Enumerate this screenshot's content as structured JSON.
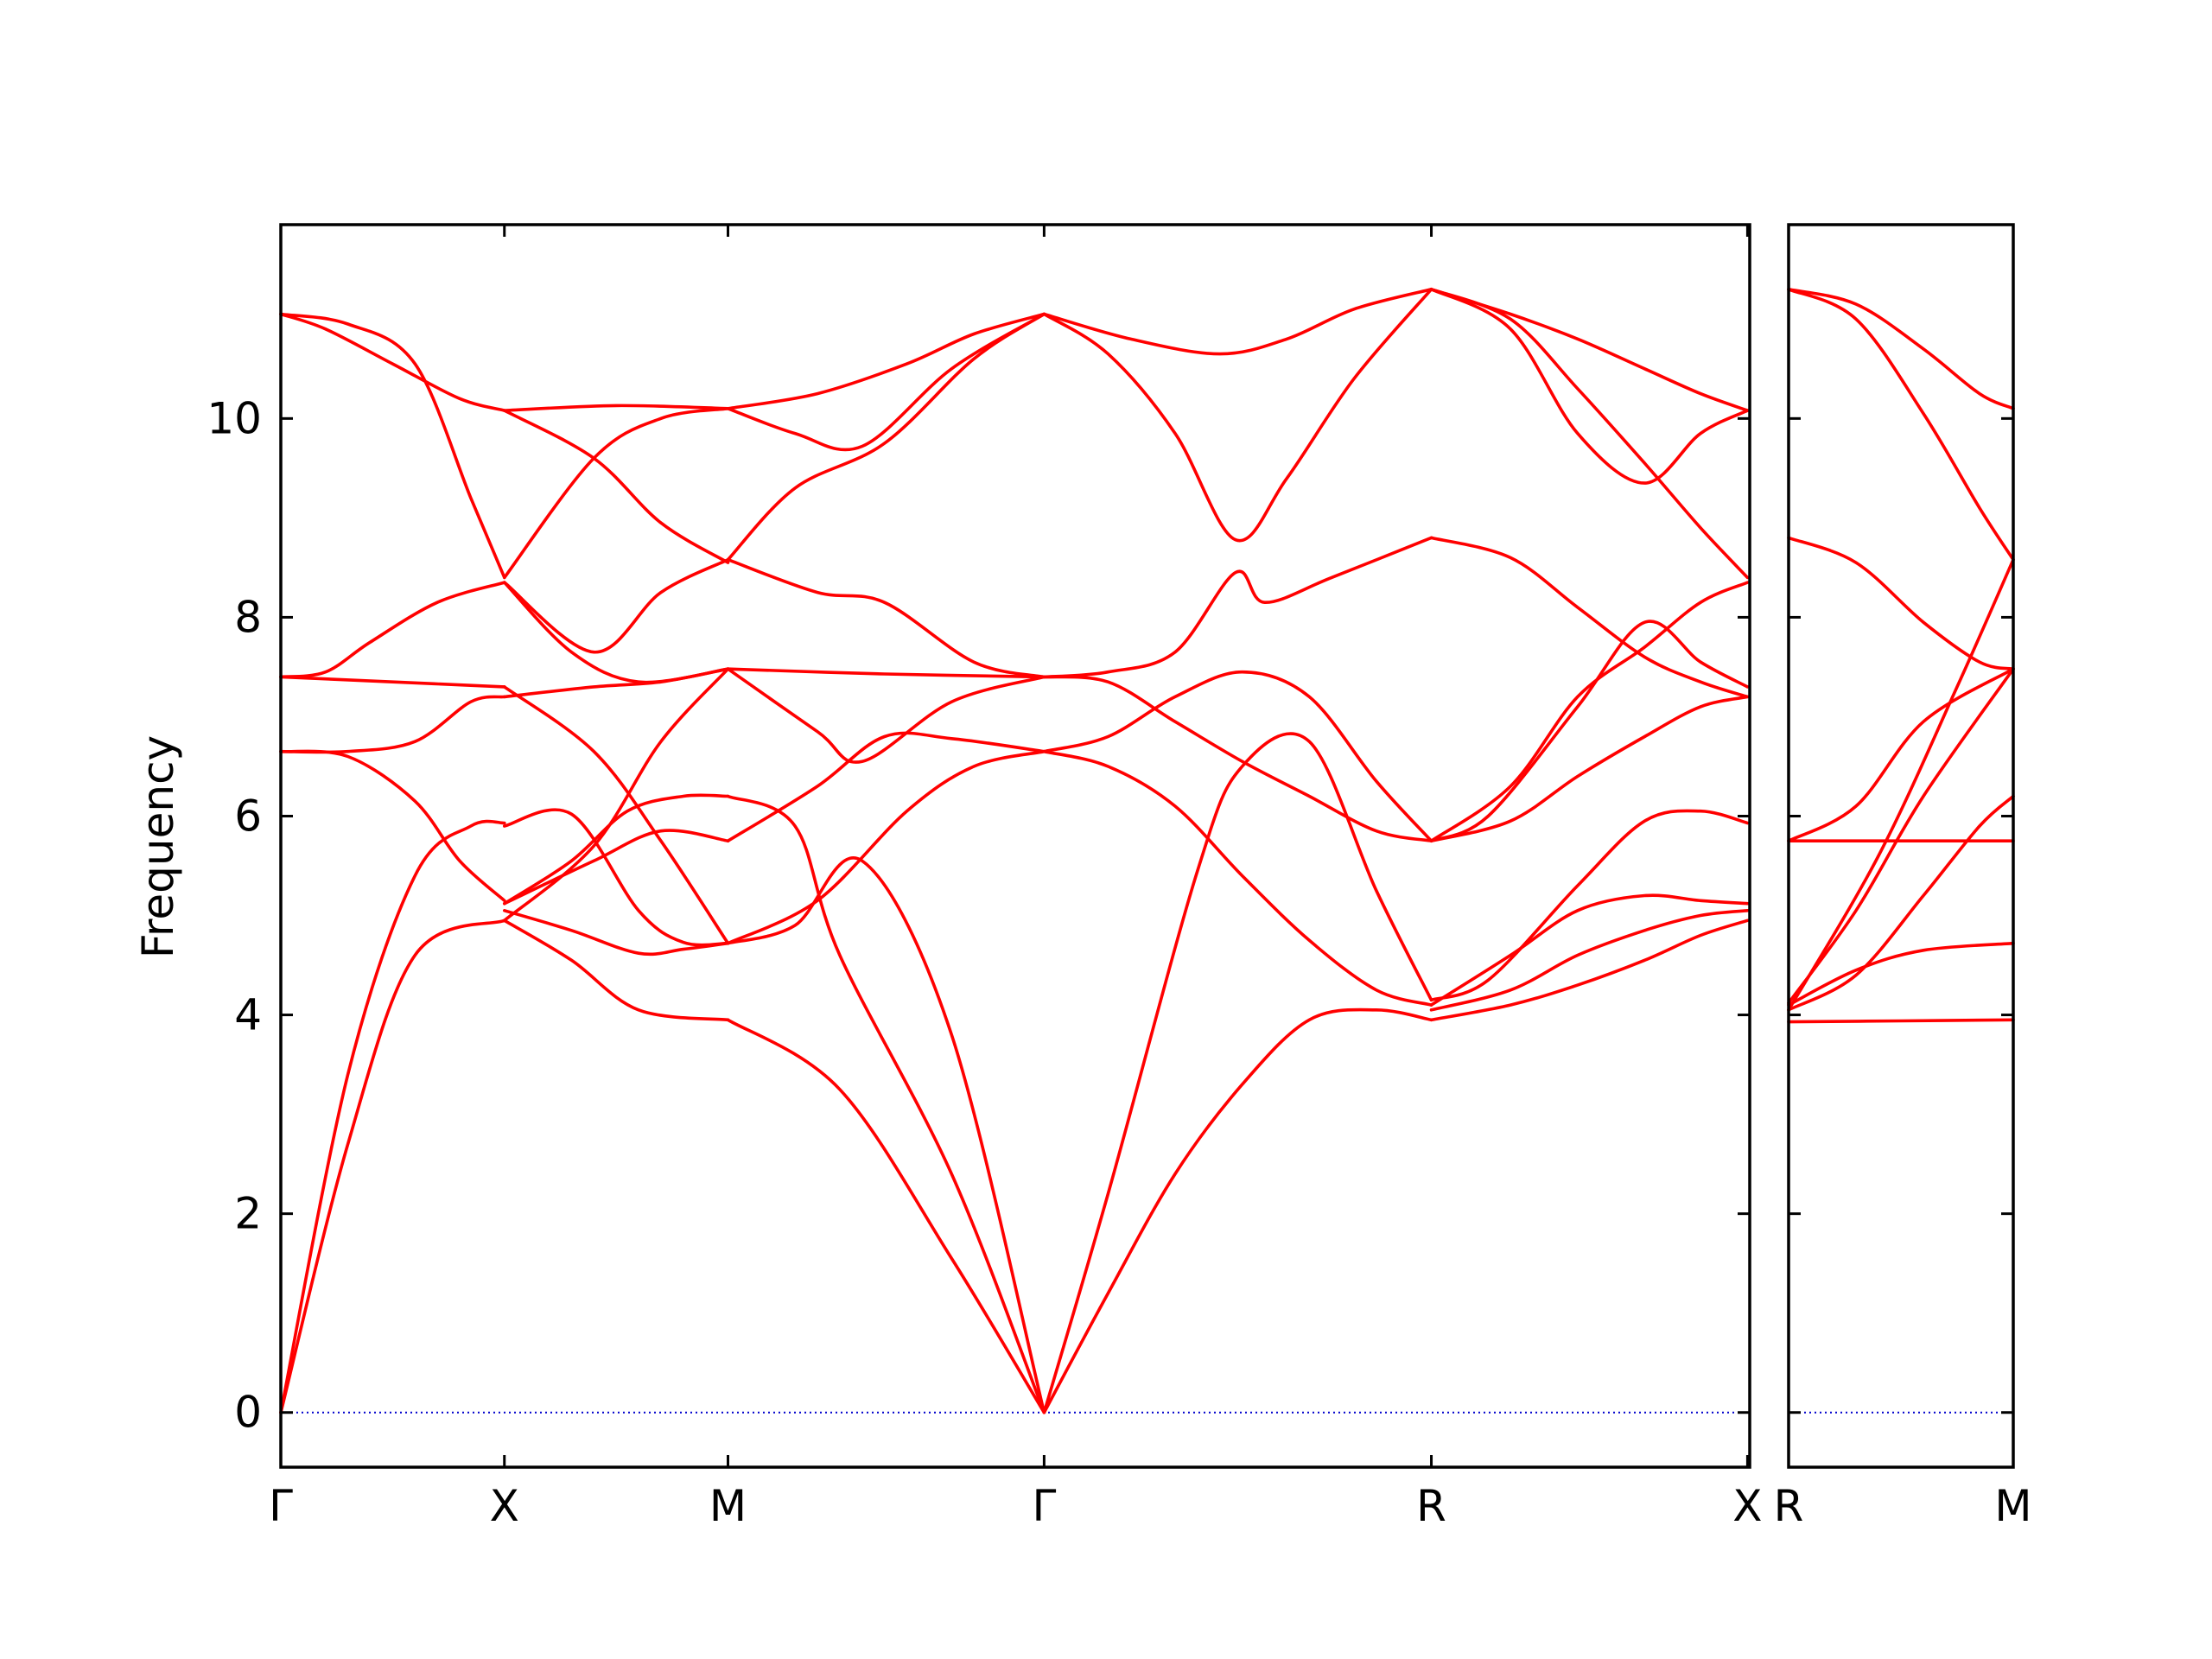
{
  "chart_data": {
    "type": "line",
    "ylabel": "Frequency",
    "ylim": [
      -0.55,
      11.95
    ],
    "yticks": [
      0,
      2,
      4,
      6,
      8,
      10
    ],
    "ytick_labels": [
      "0",
      "2",
      "4",
      "6",
      "8",
      "10"
    ],
    "line_color": "#ff0000",
    "zero_line_color": "#0000cc",
    "grid": false,
    "panels": [
      {
        "id": "main",
        "xlim": [
          0,
          6.57
        ],
        "xticks": [
          0,
          1,
          2,
          3.414,
          5.146,
          6.56
        ],
        "xtick_labels": [
          "Γ",
          "X",
          "M",
          "Γ",
          "R",
          "X"
        ],
        "bands": [
          {
            "x": [
              0,
              0.3,
              0.6,
              1
            ],
            "y": [
              0,
              2.7,
              4.6,
              4.95
            ]
          },
          {
            "x": [
              0,
              0.3,
              0.6,
              0.85,
              1
            ],
            "y": [
              0,
              3.4,
              5.4,
              5.9,
              5.93
            ]
          },
          {
            "x": [
              0,
              0.3,
              0.6,
              0.8,
              1
            ],
            "y": [
              6.65,
              6.6,
              6.15,
              5.55,
              5.15
            ]
          },
          {
            "x": [
              0,
              0.3,
              0.6,
              0.85,
              1
            ],
            "y": [
              6.65,
              6.65,
              6.75,
              7.15,
              7.2
            ]
          },
          {
            "x": [
              0,
              0.5,
              1
            ],
            "y": [
              7.4,
              7.35,
              7.3
            ]
          },
          {
            "x": [
              0,
              0.2,
              0.4,
              0.7,
              1
            ],
            "y": [
              7.4,
              7.45,
              7.75,
              8.15,
              8.35
            ]
          },
          {
            "x": [
              0,
              0.3,
              0.6,
              0.85,
              1
            ],
            "y": [
              11.05,
              10.95,
              10.55,
              9.2,
              8.4
            ]
          },
          {
            "x": [
              0,
              0.2,
              0.5,
              0.8,
              1
            ],
            "y": [
              11.05,
              10.9,
              10.55,
              10.2,
              10.08
            ]
          },
          {
            "x": [
              1,
              1.3,
              1.6,
              2
            ],
            "y": [
              4.95,
              4.55,
              4.05,
              3.95
            ]
          },
          {
            "x": [
              1,
              1.3,
              1.6,
              1.8,
              2
            ],
            "y": [
              5.05,
              4.85,
              4.62,
              4.66,
              4.72
            ]
          },
          {
            "x": [
              1,
              1.3,
              1.55,
              1.8,
              2
            ],
            "y": [
              5.12,
              5.55,
              6.05,
              6.2,
              6.2
            ]
          },
          {
            "x": [
              1,
              1.3,
              1.6,
              1.8,
              2
            ],
            "y": [
              5.9,
              6.02,
              5.05,
              4.73,
              4.72
            ]
          },
          {
            "x": [
              1,
              1.4,
              1.7,
              2
            ],
            "y": [
              5.12,
              5.55,
              5.85,
              5.75
            ]
          },
          {
            "x": [
              1,
              1.4,
              1.7,
              2
            ],
            "y": [
              7.2,
              7.3,
              7.35,
              7.48
            ]
          },
          {
            "x": [
              1,
              1.4,
              1.7,
              2
            ],
            "y": [
              7.3,
              6.65,
              5.75,
              4.72
            ]
          },
          {
            "x": [
              1,
              1.3,
              1.6,
              2
            ],
            "y": [
              8.35,
              7.65,
              7.35,
              7.48
            ]
          },
          {
            "x": [
              1,
              1.4,
              1.7,
              2
            ],
            "y": [
              4.95,
              5.7,
              6.75,
              7.48
            ]
          },
          {
            "x": [
              1,
              1.4,
              1.7,
              2
            ],
            "y": [
              8.35,
              7.65,
              8.25,
              8.58
            ]
          },
          {
            "x": [
              1,
              1.4,
              1.7,
              2
            ],
            "y": [
              8.4,
              9.6,
              10,
              10.1
            ]
          },
          {
            "x": [
              1,
              1.4,
              1.7,
              2
            ],
            "y": [
              10.08,
              9.6,
              8.95,
              8.55
            ]
          },
          {
            "x": [
              1,
              1.5,
              2
            ],
            "y": [
              10.08,
              10.13,
              10.1
            ]
          },
          {
            "x": [
              2,
              2.5,
              3,
              3.414
            ],
            "y": [
              3.95,
              3.25,
              1.55,
              0
            ]
          },
          {
            "x": [
              2,
              2.3,
              2.6,
              3,
              3.414
            ],
            "y": [
              4.72,
              4.9,
              5.55,
              3.8,
              0
            ]
          },
          {
            "x": [
              2,
              2.3,
              2.5,
              3,
              3.414
            ],
            "y": [
              6.2,
              5.9,
              4.6,
              2.4,
              0
            ]
          },
          {
            "x": [
              2,
              2.4,
              2.8,
              3.1,
              3.414
            ],
            "y": [
              4.72,
              5.15,
              6.05,
              6.5,
              6.65
            ]
          },
          {
            "x": [
              2,
              2.4,
              2.7,
              3,
              3.414
            ],
            "y": [
              5.75,
              6.3,
              6.8,
              6.78,
              6.65
            ]
          },
          {
            "x": [
              2,
              2.4,
              2.6,
              3,
              3.414
            ],
            "y": [
              7.48,
              6.85,
              6.55,
              7.15,
              7.4
            ]
          },
          {
            "x": [
              2,
              2.7,
              3.414
            ],
            "y": [
              7.48,
              7.43,
              7.4
            ]
          },
          {
            "x": [
              2,
              2.4,
              2.7,
              3.1,
              3.414
            ],
            "y": [
              8.58,
              8.25,
              8.15,
              7.55,
              7.4
            ]
          },
          {
            "x": [
              2,
              2.3,
              2.7,
              3.1,
              3.414
            ],
            "y": [
              8.58,
              9.3,
              9.75,
              10.6,
              11.05
            ]
          },
          {
            "x": [
              2,
              2.3,
              2.6,
              3,
              3.414
            ],
            "y": [
              10.1,
              9.85,
              9.72,
              10.5,
              11.05
            ]
          },
          {
            "x": [
              2,
              2.4,
              2.8,
              3.1,
              3.414
            ],
            "y": [
              10.1,
              10.25,
              10.55,
              10.85,
              11.05
            ]
          },
          {
            "x": [
              3.414,
              3.7,
              4,
              4.3,
              4.6,
              4.9,
              5.146
            ],
            "y": [
              0,
              1.2,
              2.4,
              3.3,
              3.95,
              4.05,
              3.95
            ]
          },
          {
            "x": [
              3.414,
              3.7,
              4.1,
              4.3,
              4.6,
              4.9,
              5.146
            ],
            "y": [
              0,
              2.2,
              5.45,
              6.5,
              6.75,
              5.25,
              4.15
            ]
          },
          {
            "x": [
              3.414,
              3.7,
              4,
              4.3,
              4.6,
              4.9,
              5.146
            ],
            "y": [
              6.65,
              6.5,
              6.1,
              5.4,
              4.75,
              4.25,
              4.1
            ]
          },
          {
            "x": [
              3.414,
              3.7,
              4,
              4.3,
              4.6,
              4.9,
              5.146
            ],
            "y": [
              6.65,
              6.8,
              7.2,
              7.45,
              7.2,
              6.35,
              5.75
            ]
          },
          {
            "x": [
              3.414,
              3.7,
              4,
              4.3,
              4.6,
              4.9,
              5.146
            ],
            "y": [
              7.4,
              7.35,
              6.95,
              6.55,
              6.2,
              5.85,
              5.75
            ]
          },
          {
            "x": [
              3.414,
              3.7,
              4,
              4.27,
              4.4,
              4.7,
              5.146
            ],
            "y": [
              7.4,
              7.45,
              7.65,
              8.45,
              8.15,
              8.4,
              8.8
            ]
          },
          {
            "x": [
              3.414,
              3.7,
              4,
              4.27,
              4.5,
              4.8,
              5.146
            ],
            "y": [
              11.05,
              10.65,
              9.85,
              8.78,
              9.4,
              10.4,
              11.3
            ]
          },
          {
            "x": [
              3.414,
              3.8,
              4.2,
              4.5,
              4.8,
              5.146
            ],
            "y": [
              11.05,
              10.8,
              10.65,
              10.8,
              11.1,
              11.3
            ]
          },
          {
            "x": [
              5.146,
              5.5,
              5.8,
              6.1,
              6.35,
              6.56
            ],
            "y": [
              3.95,
              4.1,
              4.3,
              4.55,
              4.8,
              4.95
            ]
          },
          {
            "x": [
              5.146,
              5.5,
              5.8,
              6.1,
              6.35,
              6.56
            ],
            "y": [
              4.05,
              4.25,
              4.6,
              4.85,
              5,
              5.05
            ]
          },
          {
            "x": [
              5.146,
              5.5,
              5.8,
              6.1,
              6.35,
              6.56
            ],
            "y": [
              4.1,
              4.6,
              5.05,
              5.2,
              5.15,
              5.12
            ]
          },
          {
            "x": [
              5.146,
              5.4,
              5.8,
              6.1,
              6.35,
              6.56
            ],
            "y": [
              4.15,
              4.35,
              5.3,
              5.95,
              6.05,
              5.93
            ]
          },
          {
            "x": [
              5.146,
              5.5,
              5.8,
              6.1,
              6.35,
              6.56
            ],
            "y": [
              5.75,
              5.95,
              6.4,
              6.8,
              7.1,
              7.2
            ]
          },
          {
            "x": [
              5.146,
              5.4,
              5.8,
              6.1,
              6.35,
              6.56
            ],
            "y": [
              5.75,
              6,
              7.1,
              7.95,
              7.55,
              7.3
            ]
          },
          {
            "x": [
              5.146,
              5.5,
              5.8,
              6.1,
              6.35,
              6.56
            ],
            "y": [
              5.75,
              6.3,
              7.2,
              7.7,
              8.15,
              8.35
            ]
          },
          {
            "x": [
              5.146,
              5.5,
              5.8,
              6.1,
              6.35,
              6.56
            ],
            "y": [
              8.8,
              8.6,
              8.1,
              7.6,
              7.35,
              7.2
            ]
          },
          {
            "x": [
              5.146,
              5.5,
              5.8,
              6.1,
              6.35,
              6.56
            ],
            "y": [
              11.3,
              10.9,
              9.85,
              9.35,
              9.85,
              10.08
            ]
          },
          {
            "x": [
              5.146,
              5.5,
              5.8,
              6.1,
              6.35,
              6.56
            ],
            "y": [
              11.3,
              11,
              10.3,
              9.55,
              8.9,
              8.4
            ]
          },
          {
            "x": [
              5.146,
              5.5,
              5.8,
              6.1,
              6.35,
              6.56
            ],
            "y": [
              11.3,
              11.05,
              10.8,
              10.5,
              10.25,
              10.08
            ]
          }
        ]
      },
      {
        "id": "side",
        "xlim": [
          0,
          1
        ],
        "xticks": [
          0,
          1
        ],
        "xtick_labels": [
          "R",
          "M"
        ],
        "bands": [
          {
            "x": [
              0,
              0.5,
              1
            ],
            "y": [
              3.93,
              3.94,
              3.95
            ]
          },
          {
            "x": [
              0,
              0.3,
              0.6,
              1
            ],
            "y": [
              4.1,
              4.45,
              4.65,
              4.72
            ]
          },
          {
            "x": [
              0,
              0.3,
              0.6,
              0.85,
              1
            ],
            "y": [
              4.05,
              4.4,
              5.2,
              5.9,
              6.2
            ]
          },
          {
            "x": [
              0,
              0.3,
              0.6,
              1
            ],
            "y": [
              4.12,
              5.05,
              6.2,
              7.48
            ]
          },
          {
            "x": [
              0,
              0.3,
              0.6,
              1
            ],
            "y": [
              5.75,
              6.1,
              6.95,
              7.48
            ]
          },
          {
            "x": [
              0,
              0.5,
              1
            ],
            "y": [
              5.75,
              5.75,
              5.75
            ]
          },
          {
            "x": [
              0,
              0.4,
              0.75,
              1
            ],
            "y": [
              4.05,
              5.6,
              7.3,
              8.58
            ]
          },
          {
            "x": [
              0,
              0.3,
              0.6,
              0.85,
              1
            ],
            "y": [
              8.8,
              8.55,
              7.95,
              7.55,
              7.48
            ]
          },
          {
            "x": [
              0,
              0.3,
              0.6,
              0.85,
              1
            ],
            "y": [
              11.3,
              11,
              10.05,
              9.1,
              8.58
            ]
          },
          {
            "x": [
              0,
              0.3,
              0.6,
              0.85,
              1
            ],
            "y": [
              11.3,
              11.15,
              10.7,
              10.25,
              10.1
            ]
          }
        ]
      }
    ]
  }
}
